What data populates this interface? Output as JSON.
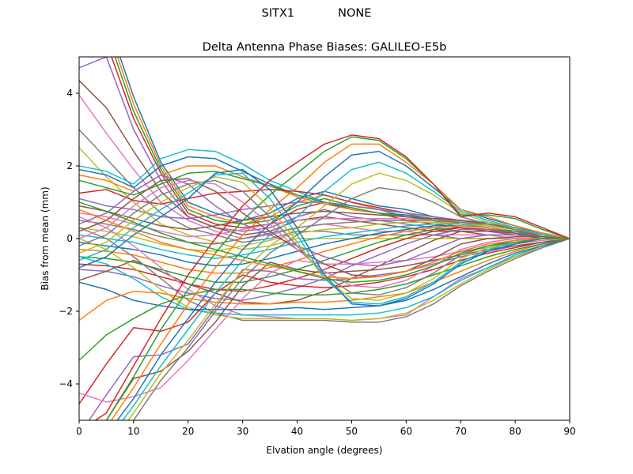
{
  "suptitle": {
    "station": "SITX1",
    "antenna": "NONE"
  },
  "chart_data": {
    "type": "line",
    "title": "Delta Antenna Phase Biases: GALILEO-E5b",
    "xlabel": "Elvation angle (degrees)",
    "ylabel": "Bias from mean (mm)",
    "xlim": [
      0,
      90
    ],
    "ylim": [
      -5,
      5
    ],
    "xticks": [
      0,
      10,
      20,
      30,
      40,
      50,
      60,
      70,
      80,
      90
    ],
    "yticks": [
      -4,
      -2,
      0,
      2,
      4
    ],
    "xtick_labels": [
      "0",
      "10",
      "20",
      "30",
      "40",
      "50",
      "60",
      "70",
      "80",
      "90"
    ],
    "ytick_labels": [
      "−4",
      "−2",
      "0",
      "2",
      "4"
    ],
    "grid": false,
    "legend": "none",
    "x": [
      0,
      5,
      10,
      15,
      20,
      25,
      30,
      35,
      40,
      45,
      50,
      55,
      60,
      65,
      70,
      75,
      80,
      85,
      90
    ],
    "colors": [
      "#1f77b4",
      "#ff7f0e",
      "#2ca02c",
      "#d62728",
      "#9467bd",
      "#8c564b",
      "#e377c2",
      "#7f7f7f",
      "#bcbd22",
      "#17becf"
    ],
    "series": [
      {
        "values": [
          5.8,
          6.1,
          3.9,
          2.1,
          1.0,
          0.7,
          0.5,
          0.7,
          1.1,
          1.3,
          1.1,
          0.9,
          0.8,
          0.6,
          0.4,
          0.3,
          0.2,
          0.1,
          0.0
        ]
      },
      {
        "values": [
          5.6,
          5.9,
          3.7,
          2.0,
          0.9,
          0.6,
          0.4,
          0.6,
          1.0,
          1.2,
          1.0,
          0.8,
          0.7,
          0.5,
          0.4,
          0.3,
          0.2,
          0.1,
          0.0
        ]
      },
      {
        "values": [
          5.4,
          5.7,
          3.5,
          1.9,
          0.8,
          0.5,
          0.4,
          0.5,
          0.9,
          1.1,
          0.9,
          0.8,
          0.6,
          0.5,
          0.3,
          0.2,
          0.2,
          0.1,
          0.0
        ]
      },
      {
        "values": [
          5.1,
          5.4,
          3.3,
          1.8,
          0.7,
          0.4,
          0.3,
          0.4,
          0.8,
          1.0,
          0.8,
          0.7,
          0.5,
          0.4,
          0.3,
          0.2,
          0.1,
          0.1,
          0.0
        ]
      },
      {
        "values": [
          4.7,
          5.0,
          3.0,
          1.6,
          0.6,
          0.3,
          0.2,
          0.3,
          0.6,
          0.8,
          0.6,
          0.5,
          0.4,
          0.3,
          0.2,
          0.2,
          0.1,
          0.1,
          0.0
        ]
      },
      {
        "values": [
          4.35,
          3.6,
          2.4,
          1.3,
          0.6,
          0.3,
          0.1,
          0.2,
          0.5,
          0.6,
          0.5,
          0.4,
          0.3,
          0.2,
          0.2,
          0.1,
          0.1,
          0.0,
          0.0
        ]
      },
      {
        "values": [
          3.95,
          2.9,
          1.9,
          1.0,
          0.5,
          0.2,
          0.0,
          0.1,
          0.3,
          0.4,
          0.3,
          0.2,
          0.2,
          0.1,
          0.1,
          0.1,
          0.0,
          0.0,
          0.0
        ]
      },
      {
        "values": [
          3.0,
          2.2,
          1.4,
          0.7,
          0.3,
          0.1,
          -0.1,
          0.0,
          0.2,
          0.2,
          0.1,
          0.1,
          0.1,
          0.1,
          0.0,
          0.0,
          0.0,
          0.0,
          0.0
        ]
      },
      {
        "values": [
          2.5,
          1.7,
          1.0,
          0.4,
          0.1,
          -0.1,
          -0.3,
          -0.2,
          0.0,
          0.0,
          0.0,
          0.0,
          0.0,
          0.0,
          0.0,
          0.0,
          0.0,
          0.0,
          0.0
        ]
      },
      {
        "values": [
          2.0,
          1.85,
          1.5,
          2.2,
          2.45,
          2.4,
          2.05,
          1.6,
          1.3,
          1.0,
          0.9,
          0.8,
          0.7,
          0.6,
          0.5,
          0.45,
          0.3,
          0.15,
          0.0
        ]
      },
      {
        "values": [
          1.9,
          1.75,
          1.4,
          2.0,
          2.25,
          2.2,
          1.85,
          1.5,
          1.2,
          1.0,
          0.8,
          0.7,
          0.65,
          0.55,
          0.5,
          0.4,
          0.3,
          0.15,
          0.0
        ]
      },
      {
        "values": [
          1.75,
          1.6,
          1.3,
          1.75,
          2.0,
          2.0,
          1.7,
          1.45,
          1.15,
          0.95,
          0.8,
          0.7,
          0.6,
          0.55,
          0.45,
          0.4,
          0.25,
          0.1,
          0.0
        ]
      },
      {
        "values": [
          1.6,
          1.4,
          1.2,
          1.5,
          1.8,
          1.85,
          1.65,
          1.45,
          1.2,
          1.0,
          0.85,
          0.7,
          0.6,
          0.5,
          0.45,
          0.35,
          0.25,
          0.1,
          0.0
        ]
      },
      {
        "values": [
          1.25,
          1.35,
          1.05,
          0.95,
          1.1,
          1.25,
          1.3,
          1.35,
          1.3,
          1.2,
          1.0,
          0.85,
          0.7,
          0.6,
          0.5,
          0.4,
          0.3,
          0.15,
          0.0
        ]
      },
      {
        "values": [
          1.1,
          0.9,
          0.8,
          0.6,
          0.55,
          0.65,
          0.8,
          0.9,
          1.0,
          1.0,
          0.9,
          0.8,
          0.7,
          0.6,
          0.5,
          0.4,
          0.3,
          0.15,
          0.0
        ]
      },
      {
        "values": [
          0.9,
          0.75,
          0.55,
          0.35,
          0.25,
          0.35,
          0.5,
          0.6,
          0.7,
          0.75,
          0.7,
          0.65,
          0.6,
          0.55,
          0.5,
          0.4,
          0.3,
          0.15,
          0.0
        ]
      },
      {
        "values": [
          0.7,
          0.6,
          0.4,
          0.2,
          0.05,
          0.1,
          0.25,
          0.4,
          0.5,
          0.55,
          0.55,
          0.55,
          0.55,
          0.5,
          0.45,
          0.35,
          0.25,
          0.15,
          0.0
        ]
      },
      {
        "values": [
          0.5,
          0.4,
          0.25,
          0.05,
          -0.1,
          -0.15,
          0.0,
          0.15,
          0.3,
          0.4,
          0.45,
          0.5,
          0.5,
          0.5,
          0.45,
          0.35,
          0.25,
          0.15,
          0.0
        ]
      },
      {
        "values": [
          0.3,
          0.2,
          0.05,
          -0.15,
          -0.3,
          -0.35,
          -0.2,
          -0.05,
          0.15,
          0.25,
          0.3,
          0.4,
          0.45,
          0.45,
          0.4,
          0.35,
          0.25,
          0.1,
          0.0
        ]
      },
      {
        "values": [
          0.1,
          0.0,
          -0.1,
          -0.3,
          -0.45,
          -0.55,
          -0.45,
          -0.3,
          -0.1,
          0.05,
          0.15,
          0.25,
          0.35,
          0.4,
          0.4,
          0.3,
          0.2,
          0.1,
          0.0
        ]
      },
      {
        "values": [
          -0.1,
          -0.2,
          -0.3,
          -0.45,
          -0.65,
          -0.75,
          -0.7,
          -0.55,
          -0.35,
          -0.15,
          0.0,
          0.15,
          0.25,
          0.35,
          0.35,
          0.3,
          0.2,
          0.1,
          0.0
        ]
      },
      {
        "values": [
          -0.3,
          -0.35,
          -0.45,
          -0.65,
          -0.85,
          -0.95,
          -0.95,
          -0.8,
          -0.6,
          -0.35,
          -0.15,
          0.05,
          0.2,
          0.3,
          0.35,
          0.3,
          0.2,
          0.1,
          0.0
        ]
      },
      {
        "values": [
          -0.5,
          -0.55,
          -0.65,
          -0.85,
          -1.05,
          -1.2,
          -1.2,
          -1.05,
          -0.85,
          -0.6,
          -0.35,
          -0.1,
          0.1,
          0.25,
          0.3,
          0.25,
          0.2,
          0.1,
          0.0
        ]
      },
      {
        "values": [
          -0.7,
          -0.75,
          -0.85,
          -1.05,
          -1.25,
          -1.4,
          -1.45,
          -1.3,
          -1.1,
          -0.85,
          -0.55,
          -0.25,
          0.0,
          0.2,
          0.3,
          0.25,
          0.15,
          0.1,
          0.0
        ]
      },
      {
        "values": [
          -0.85,
          -0.9,
          -1.05,
          -1.3,
          -1.5,
          -1.65,
          -1.7,
          -1.55,
          -1.35,
          -1.1,
          -0.75,
          -0.45,
          -0.15,
          0.1,
          0.25,
          0.25,
          0.15,
          0.1,
          0.0
        ]
      },
      {
        "values": [
          -1.15,
          -0.9,
          -0.6,
          -0.9,
          -1.25,
          -1.5,
          -1.75,
          -1.8,
          -1.7,
          -1.45,
          -1.1,
          -0.75,
          -0.4,
          -0.05,
          0.2,
          0.2,
          0.15,
          0.05,
          0.0
        ]
      },
      {
        "values": [
          0.6,
          0.3,
          -0.2,
          -0.8,
          -1.4,
          -1.85,
          -2.1,
          -2.15,
          -2.2,
          -2.2,
          -2.25,
          -2.2,
          -2.1,
          -1.6,
          -1.1,
          -0.8,
          -0.5,
          -0.25,
          0.0
        ]
      },
      {
        "values": [
          0.3,
          0.0,
          -0.5,
          -1.1,
          -1.7,
          -2.05,
          -2.25,
          -2.25,
          -2.25,
          -2.25,
          -2.3,
          -2.3,
          -2.15,
          -1.8,
          -1.3,
          -0.9,
          -0.55,
          -0.25,
          0.0
        ]
      },
      {
        "values": [
          0.0,
          -0.3,
          -0.8,
          -1.4,
          -1.9,
          -2.1,
          -2.2,
          -2.2,
          -2.2,
          -2.2,
          -2.25,
          -2.2,
          -2.05,
          -1.7,
          -1.25,
          -0.85,
          -0.5,
          -0.2,
          0.0
        ]
      },
      {
        "values": [
          -0.5,
          -0.7,
          -1.1,
          -1.6,
          -1.95,
          -2.05,
          -2.1,
          -2.1,
          -2.1,
          -2.1,
          -2.1,
          -2.05,
          -1.9,
          -1.6,
          -1.15,
          -0.8,
          -0.45,
          -0.2,
          0.0
        ]
      },
      {
        "values": [
          -1.2,
          -1.4,
          -1.7,
          -1.85,
          -1.95,
          -1.95,
          -1.95,
          -1.95,
          -1.9,
          -1.95,
          -1.9,
          -1.85,
          -1.7,
          -1.4,
          -1.05,
          -0.7,
          -0.4,
          -0.2,
          0.0
        ]
      },
      {
        "values": [
          -2.25,
          -1.7,
          -1.45,
          -1.5,
          -1.65,
          -1.75,
          -1.8,
          -1.8,
          -1.75,
          -1.75,
          -1.7,
          -1.6,
          -1.5,
          -1.2,
          -0.9,
          -0.6,
          -0.35,
          -0.15,
          0.0
        ]
      },
      {
        "values": [
          -3.35,
          -2.65,
          -2.2,
          -1.8,
          -1.55,
          -1.4,
          -1.4,
          -1.5,
          -1.55,
          -1.55,
          -1.5,
          -1.4,
          -1.25,
          -1.0,
          -0.75,
          -0.5,
          -0.3,
          -0.15,
          0.0
        ]
      },
      {
        "values": [
          -4.55,
          -3.45,
          -2.45,
          -2.55,
          -2.3,
          -1.5,
          -1.0,
          -1.2,
          -1.3,
          -1.35,
          -1.3,
          -1.2,
          -1.05,
          -0.85,
          -0.6,
          -0.4,
          -0.25,
          -0.1,
          0.0
        ]
      },
      {
        "values": [
          -5.4,
          -4.3,
          -3.25,
          -3.2,
          -2.9,
          -1.9,
          -0.85,
          -0.9,
          -1.1,
          -1.15,
          -1.1,
          -1.0,
          -0.9,
          -0.7,
          -0.5,
          -0.35,
          -0.2,
          -0.1,
          0.0
        ]
      },
      {
        "values": [
          -6.0,
          -5.0,
          -3.85,
          -3.65,
          -3.1,
          -2.3,
          -1.3,
          -0.65,
          -0.85,
          -0.95,
          -0.9,
          -0.85,
          -0.75,
          -0.6,
          -0.45,
          -0.3,
          -0.2,
          -0.1,
          0.0
        ]
      },
      {
        "values": [
          -4.25,
          -4.5,
          -4.35,
          -4.1,
          -3.35,
          -2.5,
          -1.65,
          -0.95,
          -0.6,
          -0.7,
          -0.7,
          -0.65,
          -0.6,
          -0.5,
          -0.35,
          -0.25,
          -0.15,
          -0.05,
          0.0
        ]
      },
      {
        "values": [
          -6.5,
          -6.0,
          -5.0,
          -3.9,
          -3.0,
          -2.0,
          -1.1,
          -0.4,
          0.1,
          0.6,
          1.1,
          1.4,
          1.3,
          1.0,
          0.6,
          0.4,
          0.25,
          0.1,
          0.0
        ]
      },
      {
        "values": [
          -6.3,
          -5.8,
          -4.8,
          -3.7,
          -2.8,
          -1.8,
          -0.9,
          -0.2,
          0.3,
          0.9,
          1.5,
          1.8,
          1.6,
          1.2,
          0.7,
          0.45,
          0.3,
          0.1,
          0.0
        ]
      },
      {
        "values": [
          -6.1,
          -5.6,
          -4.6,
          -3.5,
          -2.5,
          -1.5,
          -0.6,
          0.1,
          0.6,
          1.3,
          1.9,
          2.1,
          1.8,
          1.3,
          0.75,
          0.5,
          0.3,
          0.1,
          0.0
        ]
      },
      {
        "values": [
          -5.9,
          -5.4,
          -4.4,
          -3.2,
          -2.2,
          -1.2,
          -0.3,
          0.4,
          1.0,
          1.7,
          2.3,
          2.4,
          2.0,
          1.4,
          0.8,
          0.55,
          0.35,
          0.15,
          0.0
        ]
      },
      {
        "values": [
          -5.7,
          -5.2,
          -4.1,
          -2.9,
          -1.8,
          -0.8,
          0.1,
          0.8,
          1.4,
          2.1,
          2.6,
          2.6,
          2.1,
          1.5,
          0.8,
          0.6,
          0.35,
          0.15,
          0.0
        ]
      },
      {
        "values": [
          -5.5,
          -5.0,
          -3.8,
          -2.5,
          -1.4,
          -0.4,
          0.5,
          1.2,
          1.8,
          2.4,
          2.8,
          2.7,
          2.2,
          1.5,
          0.65,
          0.65,
          0.55,
          0.25,
          0.0
        ]
      },
      {
        "values": [
          -5.3,
          -4.8,
          -3.5,
          -2.2,
          -1.0,
          0.0,
          0.9,
          1.6,
          2.1,
          2.6,
          2.85,
          2.75,
          2.25,
          1.5,
          0.6,
          0.7,
          0.6,
          0.3,
          0.0
        ]
      },
      {
        "values": [
          0.4,
          0.7,
          1.3,
          1.75,
          1.5,
          0.9,
          0.4,
          0.1,
          -0.2,
          -0.5,
          -0.7,
          -0.75,
          -0.6,
          -0.3,
          0.0,
          0.1,
          0.1,
          0.05,
          0.0
        ]
      },
      {
        "values": [
          0.2,
          0.5,
          1.1,
          1.6,
          1.65,
          1.3,
          0.7,
          0.2,
          -0.3,
          -0.7,
          -1.0,
          -1.05,
          -0.9,
          -0.55,
          -0.15,
          0.0,
          0.05,
          0.05,
          0.0
        ]
      },
      {
        "values": [
          0.0,
          0.3,
          0.9,
          1.4,
          1.6,
          1.5,
          1.0,
          0.4,
          -0.3,
          -0.9,
          -1.3,
          -1.35,
          -1.15,
          -0.75,
          -0.3,
          -0.1,
          0.0,
          0.0,
          0.0
        ]
      },
      {
        "values": [
          -0.2,
          0.1,
          0.7,
          1.2,
          1.5,
          1.6,
          1.3,
          0.6,
          -0.2,
          -1.0,
          -1.5,
          -1.55,
          -1.35,
          -0.95,
          -0.45,
          -0.2,
          -0.05,
          0.0,
          0.0
        ]
      },
      {
        "values": [
          -0.4,
          -0.1,
          0.5,
          1.0,
          1.4,
          1.7,
          1.55,
          0.85,
          -0.1,
          -1.1,
          -1.65,
          -1.7,
          -1.5,
          -1.1,
          -0.55,
          -0.25,
          -0.1,
          0.0,
          0.0
        ]
      },
      {
        "values": [
          -0.6,
          -0.3,
          0.3,
          0.8,
          1.25,
          1.75,
          1.8,
          1.1,
          0.1,
          -1.1,
          -1.75,
          -1.8,
          -1.6,
          -1.2,
          -0.65,
          -0.3,
          -0.1,
          0.0,
          0.0
        ]
      },
      {
        "values": [
          -0.8,
          -0.5,
          0.1,
          0.6,
          1.1,
          1.8,
          1.9,
          1.35,
          0.3,
          -1.0,
          -1.8,
          -1.85,
          -1.65,
          -1.25,
          -0.7,
          -0.35,
          -0.15,
          0.0,
          0.0
        ]
      },
      {
        "values": [
          0.8,
          0.5,
          0.2,
          -0.1,
          -0.3,
          -0.45,
          -0.6,
          -0.75,
          -0.9,
          -1.05,
          -1.1,
          -1.05,
          -0.9,
          -0.65,
          -0.35,
          -0.15,
          -0.05,
          0.0,
          0.0
        ]
      },
      {
        "values": [
          1.0,
          0.75,
          0.45,
          0.15,
          -0.1,
          -0.3,
          -0.5,
          -0.7,
          -0.9,
          -1.1,
          -1.2,
          -1.15,
          -1.0,
          -0.75,
          -0.4,
          -0.2,
          -0.1,
          0.0,
          0.0
        ]
      }
    ]
  }
}
